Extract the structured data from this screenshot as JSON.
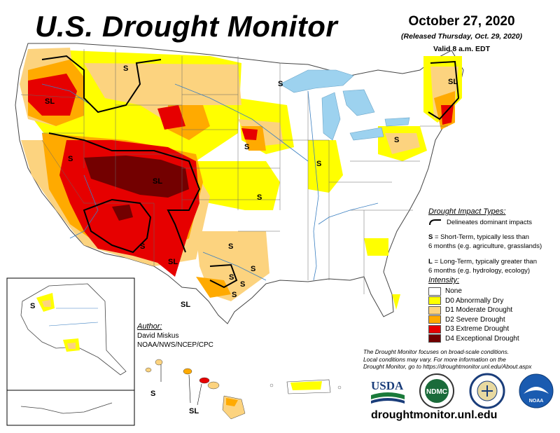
{
  "header": {
    "title": "U.S. Drought Monitor",
    "date": "October 27, 2020",
    "released": "(Released Thursday, Oct. 29, 2020)",
    "valid": "Valid 8 a.m. EDT"
  },
  "impact_types": {
    "title": "Drought Impact Types:",
    "delineates": "Delineates dominant impacts",
    "short_term_key": "S",
    "short_term_text": " = Short-Term, typically less than",
    "short_term_text2": "6 months (e.g. agriculture, grasslands)",
    "long_term_key": "L",
    "long_term_text": " = Long-Term, typically greater than",
    "long_term_text2": "6 months (e.g. hydrology, ecology)"
  },
  "intensity": {
    "title": "Intensity:",
    "levels": [
      {
        "label": "None",
        "color": "#ffffff"
      },
      {
        "label": "D0 Abnormally Dry",
        "color": "#ffff00"
      },
      {
        "label": "D1 Moderate Drought",
        "color": "#fcd37f"
      },
      {
        "label": "D2 Severe Drought",
        "color": "#ffaa00"
      },
      {
        "label": "D3 Extreme Drought",
        "color": "#e60000"
      },
      {
        "label": "D4 Exceptional Drought",
        "color": "#730000"
      }
    ]
  },
  "author": {
    "title": "Author:",
    "name": "David Miskus",
    "org": "NOAA/NWS/NCEP/CPC"
  },
  "footnote": {
    "line1": "The Drought Monitor focuses on broad-scale conditions.",
    "line2": "Local conditions may vary. For more information on the",
    "line3": "Drought Monitor, go to https://droughtmonitor.unl.edu/About.aspx"
  },
  "logos": {
    "usda": "USDA",
    "ndmc": "NDMC",
    "commerce": "DEPARTMENT OF COMMERCE",
    "noaa": "NOAA"
  },
  "website": "droughtmonitor.unl.edu",
  "map_labels": {
    "sl_pacific_nw": "SL",
    "s_montana": "S",
    "s_great_lakes": "S",
    "sl_new_england": "SL",
    "s_pennsylvania": "S",
    "s_nevada": "S",
    "sl_colorado": "SL",
    "s_nebraska_south": "S",
    "s_kansas": "S",
    "s_oklahoma": "S",
    "s_nm_east": "S",
    "sl_nm_south": "SL",
    "s_texas_north": "S",
    "s_texas_east": "S",
    "s_texas_central": "S",
    "s_texas_central2": "S",
    "s_texas_west": "S",
    "sl_texas_south": "SL",
    "s_alaska": "S",
    "s_hawaii_west": "S",
    "sl_hawaii": "SL"
  }
}
